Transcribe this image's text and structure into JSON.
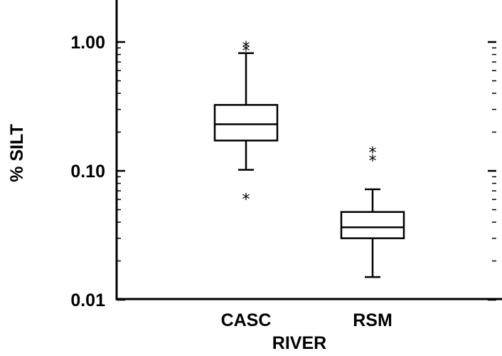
{
  "chart_data": {
    "type": "box",
    "xlabel": "RIVER",
    "ylabel": "% SILT",
    "yscale": "log",
    "ylim": [
      0.01,
      1.8
    ],
    "ytick_labels": [
      "0.01",
      "0.10",
      "1.00"
    ],
    "ytick_values": [
      0.01,
      0.1,
      1.0
    ],
    "categories": [
      "CASC",
      "RSM"
    ],
    "boxes": [
      {
        "category": "CASC",
        "whisker_low": 0.102,
        "q1": 0.172,
        "median": 0.23,
        "q3": 0.325,
        "whisker_high": 0.82,
        "outliers": [
          0.063,
          0.89,
          0.95
        ]
      },
      {
        "category": "RSM",
        "whisker_low": 0.015,
        "q1": 0.03,
        "median": 0.0365,
        "q3": 0.048,
        "whisker_high": 0.072,
        "outliers": [
          0.125,
          0.145
        ]
      }
    ],
    "outlier_marker": "*"
  }
}
